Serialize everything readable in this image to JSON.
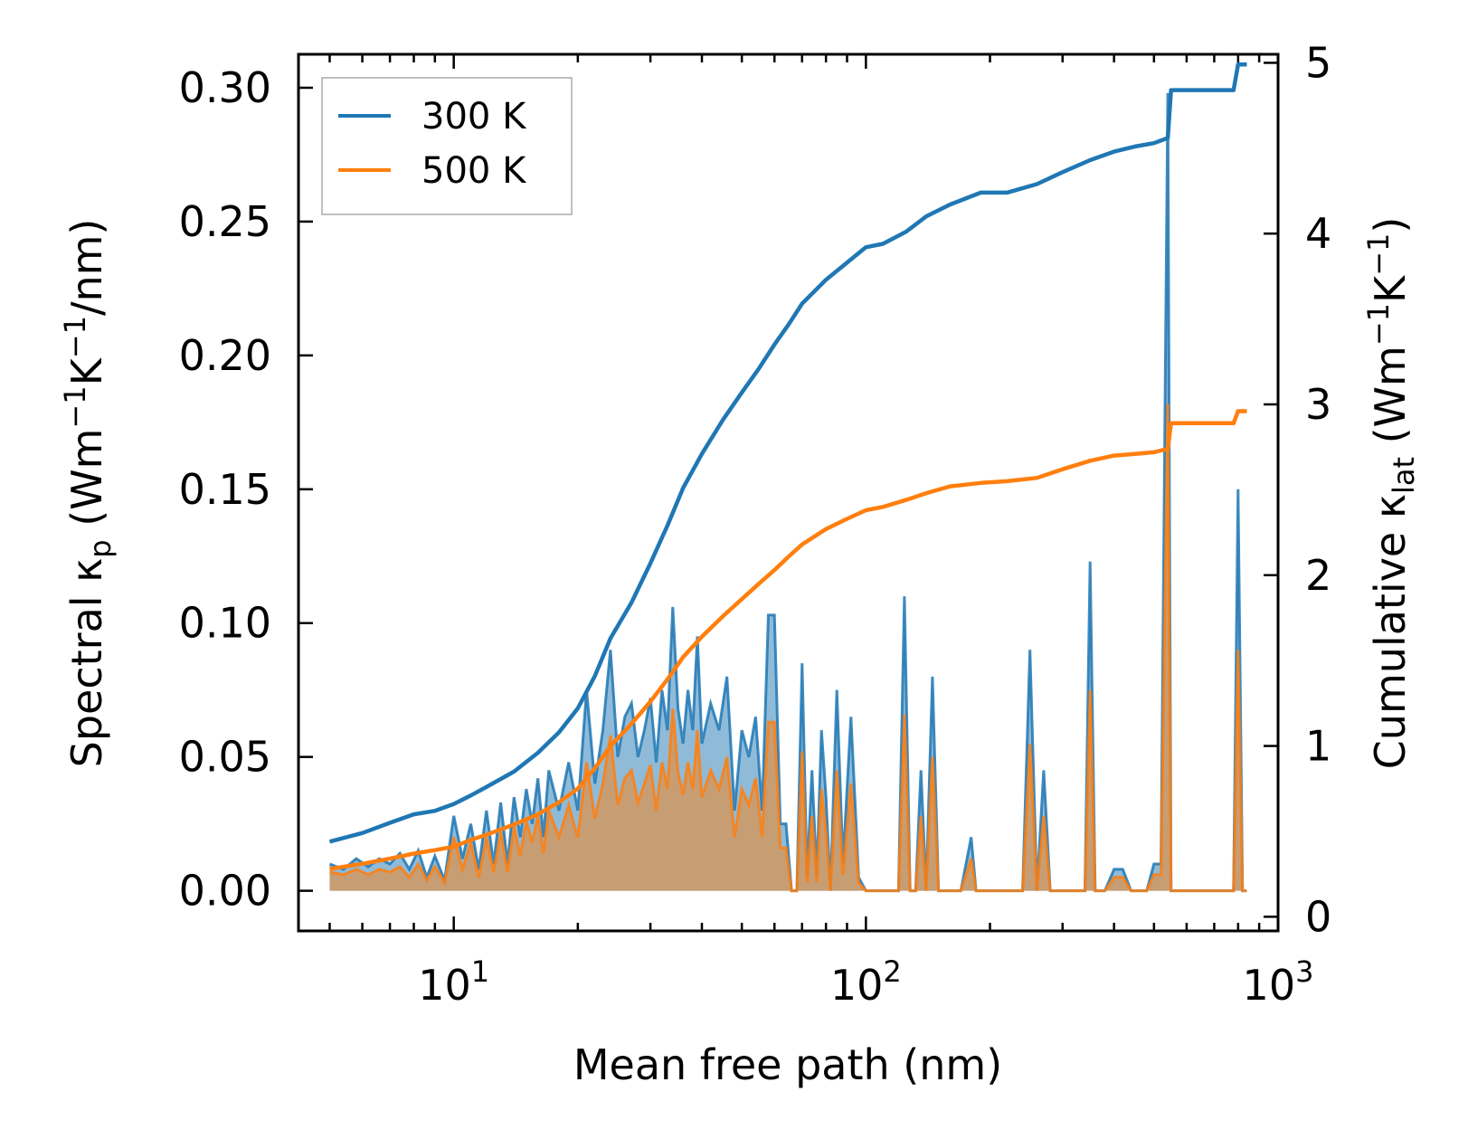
{
  "chart_data": {
    "type": "line",
    "title": "",
    "xlabel": "Mean free path (nm)",
    "xscale": "log",
    "xlim": [
      4.2,
      1000
    ],
    "x_ticks": [
      {
        "value": 10,
        "base": "10",
        "exp": "1"
      },
      {
        "value": 100,
        "base": "10",
        "exp": "2"
      },
      {
        "value": 1000,
        "base": "10",
        "exp": "3"
      }
    ],
    "ylabel_left": {
      "main": "Spectral κ",
      "sub": "p",
      "unit_open": " (Wm",
      "sup1": "−1",
      "mid": "K",
      "sup2": "−1",
      "unit_close": "/nm)"
    },
    "ylim_left": [
      -0.015,
      0.3125
    ],
    "yticks_left": [
      "0.00",
      "0.05",
      "0.10",
      "0.15",
      "0.20",
      "0.25",
      "0.30"
    ],
    "ylabel_right": {
      "main": "Cumulative κ",
      "sub": "lat",
      "unit_open": " (Wm",
      "sup1": "−1",
      "mid": "K",
      "sup2": "−1",
      "unit_close": ")"
    },
    "ylim_right": [
      -0.083,
      5.05
    ],
    "yticks_right": [
      "0",
      "1",
      "2",
      "3",
      "4",
      "5"
    ],
    "legend_position": "upper-left",
    "colors": {
      "300K": "#1f77b4",
      "500K": "#ff7f0e",
      "fill_300K": "#1f77b4",
      "fill_500K": "#ff7f0e"
    },
    "series": [
      {
        "name": "300 K",
        "axis": "right",
        "kind": "cumulative",
        "x": [
          5,
          6,
          7,
          8,
          9,
          10,
          11,
          12,
          14,
          16,
          18,
          20,
          22,
          24,
          27,
          30,
          33,
          36,
          40,
          45,
          50,
          55,
          60,
          65,
          70,
          80,
          90,
          100,
          110,
          125,
          140,
          160,
          190,
          220,
          260,
          300,
          350,
          400,
          450,
          500,
          540,
          550,
          600,
          700,
          780,
          800,
          840
        ],
        "y": [
          0.44,
          0.49,
          0.55,
          0.6,
          0.62,
          0.66,
          0.71,
          0.76,
          0.85,
          0.96,
          1.08,
          1.22,
          1.41,
          1.63,
          1.84,
          2.07,
          2.29,
          2.51,
          2.71,
          2.91,
          3.07,
          3.21,
          3.35,
          3.47,
          3.59,
          3.73,
          3.83,
          3.92,
          3.94,
          4.01,
          4.1,
          4.17,
          4.24,
          4.24,
          4.29,
          4.36,
          4.43,
          4.48,
          4.51,
          4.53,
          4.56,
          4.84,
          4.84,
          4.84,
          4.84,
          4.99,
          4.99
        ]
      },
      {
        "name": "500 K",
        "axis": "right",
        "kind": "cumulative",
        "x": [
          5,
          6,
          7,
          8,
          9,
          10,
          11,
          12,
          14,
          16,
          18,
          20,
          22,
          24,
          27,
          30,
          33,
          36,
          40,
          45,
          50,
          55,
          60,
          65,
          70,
          80,
          90,
          100,
          110,
          125,
          140,
          160,
          190,
          220,
          260,
          300,
          350,
          400,
          450,
          500,
          540,
          550,
          600,
          700,
          780,
          800,
          840
        ],
        "y": [
          0.28,
          0.31,
          0.34,
          0.37,
          0.39,
          0.41,
          0.45,
          0.48,
          0.54,
          0.6,
          0.67,
          0.75,
          0.87,
          1.0,
          1.13,
          1.26,
          1.39,
          1.52,
          1.64,
          1.76,
          1.86,
          1.95,
          2.03,
          2.11,
          2.18,
          2.27,
          2.33,
          2.38,
          2.4,
          2.44,
          2.48,
          2.52,
          2.54,
          2.55,
          2.57,
          2.62,
          2.67,
          2.7,
          2.71,
          2.72,
          2.74,
          2.89,
          2.89,
          2.89,
          2.89,
          2.96,
          2.96
        ]
      },
      {
        "name": "300 K spectral",
        "axis": "left",
        "kind": "spectral",
        "x": [
          5,
          5.4,
          5.8,
          6.2,
          6.6,
          7.0,
          7.4,
          7.8,
          8.2,
          8.6,
          9.0,
          9.5,
          10,
          10.5,
          11,
          11.5,
          12,
          12.5,
          13,
          13.5,
          14,
          14.5,
          15,
          15.5,
          16,
          16.5,
          17,
          18,
          19,
          20,
          21,
          22,
          23,
          24,
          25,
          26,
          27,
          28,
          29,
          30,
          31,
          32,
          33,
          34,
          35,
          36,
          37,
          38,
          39,
          40,
          42,
          44,
          46,
          48,
          50,
          52,
          54,
          56,
          58,
          60,
          62,
          64,
          66,
          68,
          70,
          72,
          74,
          76,
          78,
          80,
          82,
          85,
          88,
          92,
          96,
          100,
          105,
          110,
          116,
          120,
          124,
          128,
          132,
          136,
          140,
          145,
          150,
          155,
          160,
          170,
          180,
          185,
          190,
          200,
          220,
          240,
          250,
          260,
          270,
          280,
          290,
          300,
          320,
          340,
          350,
          360,
          380,
          400,
          420,
          440,
          460,
          480,
          500,
          520,
          540,
          550,
          560,
          580,
          600,
          650,
          700,
          750,
          780,
          800,
          820,
          840
        ],
        "y": [
          0.01,
          0.008,
          0.012,
          0.009,
          0.012,
          0.01,
          0.014,
          0.008,
          0.015,
          0.005,
          0.013,
          0.004,
          0.028,
          0.012,
          0.025,
          0.008,
          0.03,
          0.01,
          0.033,
          0.01,
          0.035,
          0.02,
          0.038,
          0.025,
          0.042,
          0.02,
          0.045,
          0.03,
          0.048,
          0.03,
          0.075,
          0.04,
          0.06,
          0.09,
          0.05,
          0.065,
          0.07,
          0.05,
          0.06,
          0.072,
          0.048,
          0.075,
          0.06,
          0.106,
          0.068,
          0.055,
          0.075,
          0.06,
          0.095,
          0.055,
          0.07,
          0.06,
          0.08,
          0.03,
          0.06,
          0.05,
          0.065,
          0.03,
          0.103,
          0.103,
          0.025,
          0.025,
          0.0,
          0.0,
          0.085,
          0.005,
          0.045,
          0.005,
          0.06,
          0.035,
          0.0,
          0.075,
          0.01,
          0.065,
          0.005,
          0.0,
          0.0,
          0.0,
          0.0,
          0.0,
          0.11,
          0.0,
          0.0,
          0.045,
          0.0,
          0.08,
          0.0,
          0.0,
          0.0,
          0.0,
          0.02,
          0.0,
          0.0,
          0.0,
          0.0,
          0.0,
          0.09,
          0.0,
          0.045,
          0.0,
          0.0,
          0.0,
          0.0,
          0.0,
          0.123,
          0.0,
          0.0,
          0.008,
          0.008,
          0.0,
          0.0,
          0.0,
          0.01,
          0.01,
          0.298,
          0.0,
          0.0,
          0.0,
          0.0,
          0.0,
          0.0,
          0.0,
          0.0,
          0.15,
          0.0,
          0.0
        ]
      },
      {
        "name": "500 K spectral",
        "axis": "left",
        "kind": "spectral",
        "x": [
          5,
          5.4,
          5.8,
          6.2,
          6.6,
          7.0,
          7.4,
          7.8,
          8.2,
          8.6,
          9.0,
          9.5,
          10,
          10.5,
          11,
          11.5,
          12,
          12.5,
          13,
          13.5,
          14,
          14.5,
          15,
          15.5,
          16,
          16.5,
          17,
          18,
          19,
          20,
          21,
          22,
          23,
          24,
          25,
          26,
          27,
          28,
          29,
          30,
          31,
          32,
          33,
          34,
          35,
          36,
          37,
          38,
          39,
          40,
          42,
          44,
          46,
          48,
          50,
          52,
          54,
          56,
          58,
          60,
          62,
          64,
          66,
          68,
          70,
          72,
          74,
          76,
          78,
          80,
          82,
          85,
          88,
          92,
          96,
          100,
          105,
          110,
          116,
          120,
          124,
          128,
          132,
          136,
          140,
          145,
          150,
          155,
          160,
          170,
          180,
          185,
          190,
          200,
          220,
          240,
          250,
          260,
          270,
          280,
          290,
          300,
          320,
          340,
          350,
          360,
          380,
          400,
          420,
          440,
          460,
          480,
          500,
          520,
          540,
          550,
          560,
          580,
          600,
          650,
          700,
          750,
          780,
          800,
          820,
          840
        ],
        "y": [
          0.007,
          0.006,
          0.008,
          0.006,
          0.008,
          0.007,
          0.009,
          0.005,
          0.01,
          0.004,
          0.009,
          0.003,
          0.02,
          0.008,
          0.018,
          0.005,
          0.02,
          0.007,
          0.022,
          0.007,
          0.024,
          0.013,
          0.026,
          0.018,
          0.028,
          0.014,
          0.03,
          0.02,
          0.032,
          0.02,
          0.048,
          0.027,
          0.04,
          0.058,
          0.032,
          0.042,
          0.045,
          0.033,
          0.04,
          0.047,
          0.03,
          0.048,
          0.038,
          0.068,
          0.044,
          0.036,
          0.048,
          0.038,
          0.06,
          0.035,
          0.045,
          0.038,
          0.05,
          0.02,
          0.038,
          0.032,
          0.042,
          0.02,
          0.063,
          0.063,
          0.016,
          0.016,
          0.0,
          0.0,
          0.052,
          0.003,
          0.028,
          0.003,
          0.038,
          0.022,
          0.0,
          0.045,
          0.006,
          0.04,
          0.003,
          0.0,
          0.0,
          0.0,
          0.0,
          0.0,
          0.066,
          0.0,
          0.0,
          0.028,
          0.0,
          0.05,
          0.0,
          0.0,
          0.0,
          0.0,
          0.012,
          0.0,
          0.0,
          0.0,
          0.0,
          0.0,
          0.055,
          0.0,
          0.028,
          0.0,
          0.0,
          0.0,
          0.0,
          0.0,
          0.075,
          0.0,
          0.0,
          0.005,
          0.005,
          0.0,
          0.0,
          0.0,
          0.006,
          0.006,
          0.182,
          0.0,
          0.0,
          0.0,
          0.0,
          0.0,
          0.0,
          0.0,
          0.0,
          0.09,
          0.0,
          0.0
        ]
      }
    ]
  }
}
